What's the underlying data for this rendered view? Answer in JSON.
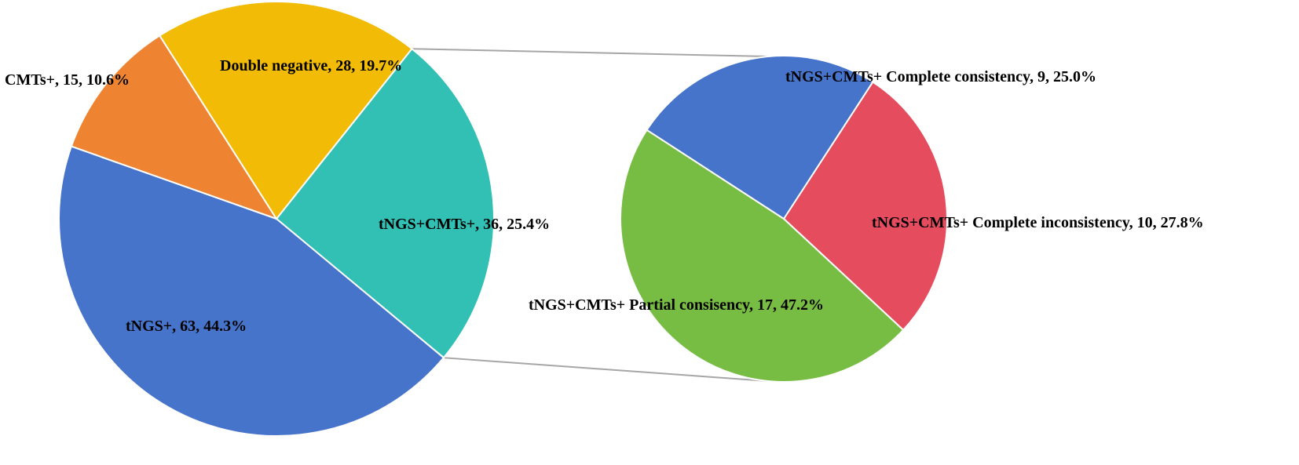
{
  "chart_data": {
    "type": "pie",
    "subtype": "pie-of-pie",
    "main_pie": {
      "slices": [
        {
          "label": "tNGS+CMTs+",
          "value": 36,
          "percent": "25.4%",
          "color": "#31c0b3",
          "text": "tNGS+CMTs+, 36, 25.4%"
        },
        {
          "label": "tNGS+",
          "value": 63,
          "percent": "44.3%",
          "color": "#4774cb",
          "text": "tNGS+, 63, 44.3%"
        },
        {
          "label": "CMTs+",
          "value": 15,
          "percent": "10.6%",
          "color": "#ee8432",
          "text": "CMTs+, 15, 10.6%"
        },
        {
          "label": "Double negative",
          "value": 28,
          "percent": "19.7%",
          "color": "#f2bb05",
          "text": "Double negative, 28, 19.7%"
        }
      ]
    },
    "secondary_pie": {
      "breakdown_of": "tNGS+CMTs+",
      "slices": [
        {
          "label": "tNGS+CMTs+ Complete inconsistency",
          "value": 10,
          "percent": "27.8%",
          "color": "#e54d5f",
          "text": "tNGS+CMTs+ Complete inconsistency, 10, 27.8%"
        },
        {
          "label": "tNGS+CMTs+ Partial consisency",
          "value": 17,
          "percent": "47.2%",
          "color": "#78bd43",
          "text": "tNGS+CMTs+ Partial consisency, 17, 47.2%"
        },
        {
          "label": "tNGS+CMTs+ Complete consistency",
          "value": 9,
          "percent": "25.0%",
          "color": "#4774cb",
          "text": "tNGS+CMTs+ Complete consistency, 9, 25.0%"
        }
      ]
    }
  }
}
